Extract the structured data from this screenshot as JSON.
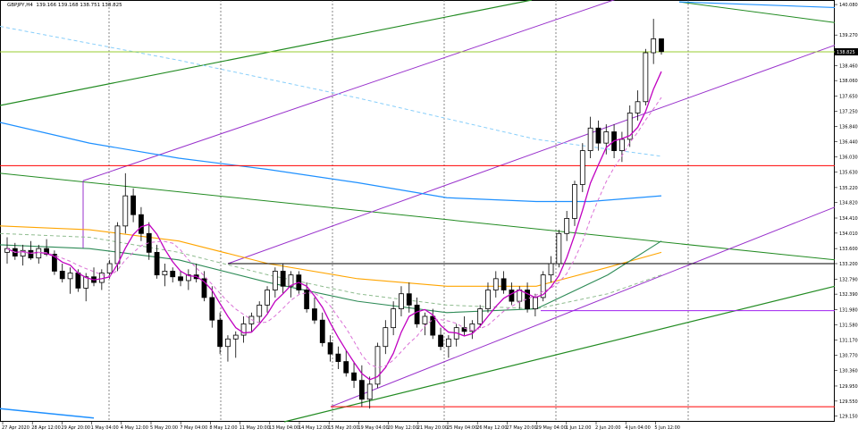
{
  "chart_data": {
    "type": "candlestick",
    "symbol": "GBPJPY,H4",
    "ohlc_text": "139.166 139.168 138.751 138.825",
    "last_price": 138.825,
    "last_price_label": "138.825",
    "ylim": [
      129.0,
      140.2
    ],
    "y_ticks": [
      "140.080",
      "139.270",
      "138.460",
      "138.060",
      "137.650",
      "137.250",
      "136.840",
      "136.440",
      "136.030",
      "135.630",
      "135.220",
      "134.820",
      "134.410",
      "134.010",
      "133.600",
      "133.200",
      "132.790",
      "132.390",
      "131.980",
      "131.580",
      "131.170",
      "130.770",
      "130.360",
      "129.950",
      "129.550",
      "129.150"
    ],
    "x_labels": [
      "27 Apr 2020",
      "28 Apr 12:00",
      "29 Apr 20:00",
      "1 May 04:00",
      "4 May 12:00",
      "5 May 20:00",
      "7 May 04:00",
      "8 May 12:00",
      "11 May 20:00",
      "13 May 04:00",
      "14 May 12:00",
      "15 May 20:00",
      "19 May 04:00",
      "20 May 12:00",
      "21 May 20:00",
      "25 May 04:00",
      "26 May 12:00",
      "27 May 20:00",
      "29 May 04:00",
      "1 Jun 12:00",
      "2 Jun 20:00",
      "4 Jun 04:00",
      "5 Jun 12:00"
    ],
    "horizontal_levels": [
      {
        "price": 138.825,
        "color": "#9acd32"
      },
      {
        "price": 135.8,
        "color": "#ff0000"
      },
      {
        "price": 133.2,
        "color": "#000000"
      },
      {
        "price": 131.95,
        "color": "#a020f0"
      },
      {
        "price": 129.4,
        "color": "#ff0000"
      }
    ],
    "candles": [
      [
        133.5,
        133.9,
        133.2,
        133.6
      ],
      [
        133.6,
        133.75,
        133.3,
        133.4
      ],
      [
        133.4,
        133.7,
        133.15,
        133.55
      ],
      [
        133.55,
        133.8,
        133.3,
        133.35
      ],
      [
        133.35,
        133.7,
        133.2,
        133.6
      ],
      [
        133.6,
        133.85,
        133.4,
        133.45
      ],
      [
        133.45,
        133.55,
        132.9,
        133.0
      ],
      [
        133.0,
        133.2,
        132.7,
        132.8
      ],
      [
        132.8,
        133.1,
        132.4,
        132.95
      ],
      [
        132.95,
        133.05,
        132.45,
        132.55
      ],
      [
        132.55,
        132.95,
        132.2,
        132.85
      ],
      [
        132.85,
        133.1,
        132.6,
        132.7
      ],
      [
        132.7,
        133.05,
        132.5,
        132.95
      ],
      [
        132.95,
        133.3,
        132.8,
        133.2
      ],
      [
        133.2,
        134.3,
        133.0,
        134.2
      ],
      [
        134.2,
        135.6,
        134.0,
        135.0
      ],
      [
        135.0,
        135.2,
        134.3,
        134.5
      ],
      [
        134.5,
        134.7,
        133.8,
        134.0
      ],
      [
        134.0,
        134.3,
        133.3,
        133.5
      ],
      [
        133.5,
        133.7,
        132.8,
        132.9
      ],
      [
        132.9,
        133.2,
        132.6,
        133.0
      ],
      [
        133.0,
        133.1,
        132.7,
        132.85
      ],
      [
        132.85,
        133.0,
        132.6,
        132.75
      ],
      [
        132.75,
        133.05,
        132.5,
        132.9
      ],
      [
        132.9,
        133.2,
        132.7,
        132.8
      ],
      [
        132.8,
        133.0,
        132.2,
        132.3
      ],
      [
        132.3,
        132.6,
        131.5,
        131.7
      ],
      [
        131.7,
        131.9,
        130.8,
        131.0
      ],
      [
        131.0,
        131.3,
        130.6,
        131.2
      ],
      [
        131.2,
        131.4,
        130.7,
        131.3
      ],
      [
        131.3,
        131.8,
        131.1,
        131.6
      ],
      [
        131.6,
        131.9,
        131.4,
        131.8
      ],
      [
        131.8,
        132.2,
        131.6,
        132.1
      ],
      [
        132.1,
        132.6,
        131.9,
        132.5
      ],
      [
        132.5,
        133.1,
        132.3,
        133.0
      ],
      [
        133.0,
        133.2,
        132.4,
        132.6
      ],
      [
        132.6,
        133.0,
        132.3,
        132.9
      ],
      [
        132.9,
        133.0,
        132.4,
        132.5
      ],
      [
        132.5,
        132.7,
        131.9,
        132.0
      ],
      [
        132.0,
        132.3,
        131.6,
        131.7
      ],
      [
        131.7,
        131.9,
        131.0,
        131.1
      ],
      [
        131.1,
        131.3,
        130.6,
        130.8
      ],
      [
        130.8,
        131.0,
        130.4,
        130.6
      ],
      [
        130.6,
        130.9,
        130.2,
        130.3
      ],
      [
        130.3,
        130.6,
        129.9,
        130.1
      ],
      [
        130.1,
        130.5,
        129.4,
        129.6
      ],
      [
        129.6,
        130.2,
        129.35,
        130.0
      ],
      [
        130.0,
        131.1,
        129.9,
        131.0
      ],
      [
        131.0,
        131.7,
        130.8,
        131.5
      ],
      [
        131.5,
        132.2,
        131.3,
        132.0
      ],
      [
        132.0,
        132.6,
        131.8,
        132.4
      ],
      [
        132.4,
        132.7,
        131.9,
        132.1
      ],
      [
        132.1,
        132.3,
        131.5,
        131.6
      ],
      [
        131.6,
        131.9,
        131.3,
        131.8
      ],
      [
        131.8,
        132.0,
        131.2,
        131.3
      ],
      [
        131.3,
        131.5,
        130.9,
        131.0
      ],
      [
        131.0,
        131.3,
        130.7,
        131.2
      ],
      [
        131.2,
        131.6,
        131.0,
        131.5
      ],
      [
        131.5,
        131.8,
        131.3,
        131.4
      ],
      [
        131.4,
        131.7,
        131.2,
        131.6
      ],
      [
        131.6,
        132.1,
        131.5,
        132.0
      ],
      [
        132.0,
        132.7,
        131.9,
        132.5
      ],
      [
        132.5,
        133.0,
        132.3,
        132.8
      ],
      [
        132.8,
        133.0,
        132.4,
        132.5
      ],
      [
        132.5,
        132.7,
        132.1,
        132.2
      ],
      [
        132.2,
        132.6,
        132.0,
        132.5
      ],
      [
        132.5,
        132.7,
        131.9,
        132.0
      ],
      [
        132.0,
        132.4,
        131.8,
        132.3
      ],
      [
        132.3,
        133.0,
        132.2,
        132.9
      ],
      [
        132.9,
        133.4,
        132.7,
        133.2
      ],
      [
        133.2,
        134.1,
        133.1,
        134.0
      ],
      [
        134.0,
        134.6,
        133.8,
        134.4
      ],
      [
        134.4,
        135.4,
        134.2,
        135.3
      ],
      [
        135.3,
        136.4,
        135.1,
        136.2
      ],
      [
        136.2,
        137.1,
        136.0,
        136.8
      ],
      [
        136.8,
        137.0,
        136.2,
        136.4
      ],
      [
        136.4,
        136.9,
        136.1,
        136.7
      ],
      [
        136.7,
        136.9,
        136.0,
        136.2
      ],
      [
        136.2,
        136.7,
        135.9,
        136.5
      ],
      [
        136.5,
        137.4,
        136.3,
        137.2
      ],
      [
        137.2,
        137.8,
        137.0,
        137.5
      ],
      [
        137.5,
        138.9,
        137.4,
        138.8
      ],
      [
        138.8,
        139.7,
        138.5,
        139.17
      ],
      [
        139.17,
        139.17,
        138.75,
        138.83
      ]
    ]
  }
}
